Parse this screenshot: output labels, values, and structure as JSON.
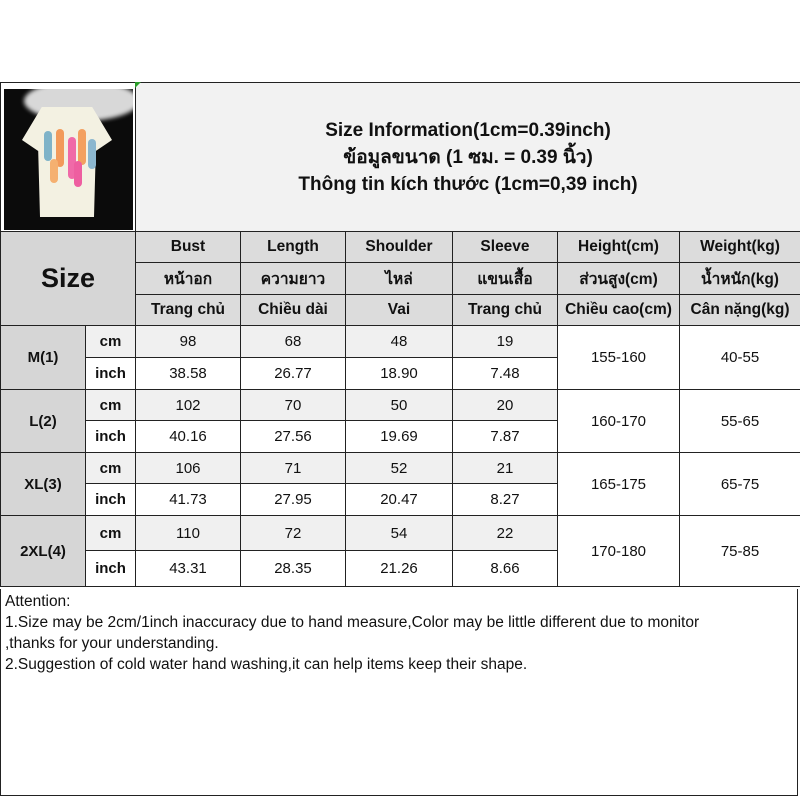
{
  "title": {
    "line1": "Size Information(1cm=0.39inch)",
    "line2": "ข้อมูลขนาด (1 ซม. = 0.39 นิ้ว)",
    "line3": "Thông tin kích thước (1cm=0,39 inch)"
  },
  "size_label": "Size",
  "columns": [
    {
      "en": "Bust",
      "th": "หน้าอก",
      "vi": "Trang chủ"
    },
    {
      "en": "Length",
      "th": "ความยาว",
      "vi": "Chiều dài"
    },
    {
      "en": "Shoulder",
      "th": "ไหล่",
      "vi": "Vai"
    },
    {
      "en": "Sleeve",
      "th": "แขนเสื้อ",
      "vi": "Trang chủ"
    },
    {
      "en": "Height(cm)",
      "th": "ส่วนสูง(cm)",
      "vi": "Chiều cao(cm)"
    },
    {
      "en": "Weight(kg)",
      "th": "น้ำหนัก(kg)",
      "vi": "Cân nặng(kg)"
    }
  ],
  "units": {
    "cm": "cm",
    "inch": "inch"
  },
  "sizes": [
    {
      "name": "M(1)",
      "cm": [
        "98",
        "68",
        "48",
        "19"
      ],
      "inch": [
        "38.58",
        "26.77",
        "18.90",
        "7.48"
      ],
      "height": "155-160",
      "weight": "40-55"
    },
    {
      "name": "L(2)",
      "cm": [
        "102",
        "70",
        "50",
        "20"
      ],
      "inch": [
        "40.16",
        "27.56",
        "19.69",
        "7.87"
      ],
      "height": "160-170",
      "weight": "55-65"
    },
    {
      "name": "XL(3)",
      "cm": [
        "106",
        "71",
        "52",
        "21"
      ],
      "inch": [
        "41.73",
        "27.95",
        "20.47",
        "8.27"
      ],
      "height": "165-175",
      "weight": "65-75"
    },
    {
      "name": "2XL(4)",
      "cm": [
        "110",
        "72",
        "54",
        "22"
      ],
      "inch": [
        "43.31",
        "28.35",
        "21.26",
        "8.66"
      ],
      "height": "170-180",
      "weight": "75-85"
    }
  ],
  "attention": {
    "heading": "Attention:",
    "line1": "1.Size may be 2cm/1inch inaccuracy due to hand measure,Color may be little different due to monitor",
    "line2": ",thanks for your understanding.",
    "line3": "2.Suggestion of cold water hand washing,it can help items keep their shape."
  }
}
